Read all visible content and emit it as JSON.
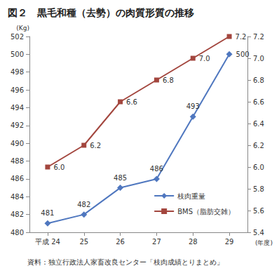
{
  "chart_data": {
    "type": "line",
    "title": "図２　黒毛和種（去勢）の肉質形質の推移",
    "note": "資料：独立行政法人家畜改良センター「枝肉成績とりまとめ」",
    "xlabel": "(年度)",
    "ylabel": "(Kg)",
    "categories": [
      "平成 24",
      "25",
      "26",
      "27",
      "28",
      "29"
    ],
    "series": [
      {
        "name": "枝肉重量",
        "color": "#4f77bf",
        "marker": "diamond",
        "values": [
          481,
          482,
          485,
          486,
          493,
          500
        ]
      },
      {
        "name": "BMS（脂肪交雑）",
        "color": "#a3463e",
        "marker": "square",
        "axis": "y2",
        "values": [
          6.0,
          6.2,
          6.6,
          6.8,
          7.0,
          7.2
        ],
        "value_labels": [
          "6.0",
          "6.2",
          "6.6",
          "6.8",
          "7.0",
          "7.2"
        ]
      }
    ],
    "ylim": [
      480,
      502
    ],
    "yticks": [
      480,
      482,
      484,
      486,
      488,
      490,
      492,
      494,
      496,
      498,
      500,
      502
    ],
    "y2lim": [
      5.4,
      7.2
    ],
    "y2ticks": [
      5.4,
      5.6,
      5.8,
      {
        "value": 6.0,
        "label": "6.0"
      },
      6.2,
      6.4,
      6.6,
      6.8,
      {
        "value": 7.0,
        "label": "7.0"
      },
      7.2
    ],
    "grid": false,
    "legend": "lower right",
    "data_labels": true
  }
}
